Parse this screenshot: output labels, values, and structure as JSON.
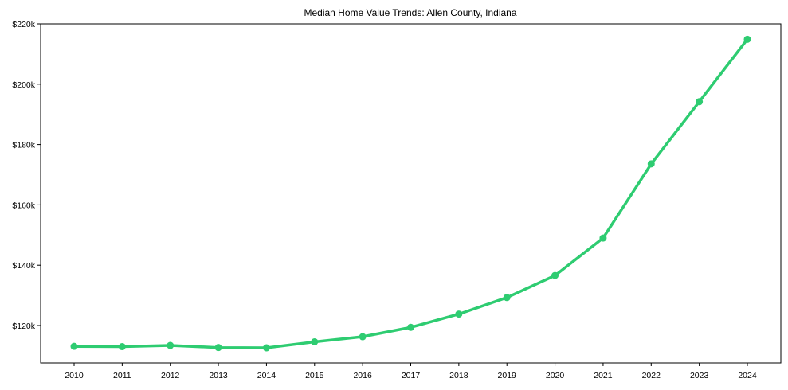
{
  "chart_data": {
    "type": "line",
    "title": "Median Home Value Trends: Allen County, Indiana",
    "xlabel": "",
    "ylabel": "",
    "x": [
      2010,
      2011,
      2012,
      2013,
      2014,
      2015,
      2016,
      2017,
      2018,
      2019,
      2020,
      2021,
      2022,
      2023,
      2024
    ],
    "series": [
      {
        "name": "Median Home Value",
        "color": "#2ecc71",
        "marker": "circle",
        "values": [
          113100,
          113000,
          113400,
          112700,
          112600,
          114600,
          116300,
          119400,
          123800,
          129300,
          136600,
          149000,
          173600,
          194200,
          214900
        ]
      }
    ],
    "ylim": [
      107600,
      220000
    ],
    "yticks": [
      120000,
      140000,
      160000,
      180000,
      200000,
      220000
    ],
    "ytick_labels": [
      "$120k",
      "$140k",
      "$160k",
      "$180k",
      "$200k",
      "$220k"
    ],
    "xtick_labels": [
      "2010",
      "2011",
      "2012",
      "2013",
      "2014",
      "2015",
      "2016",
      "2017",
      "2018",
      "2019",
      "2020",
      "2021",
      "2022",
      "2023",
      "2024"
    ],
    "grid": false,
    "legend": null
  }
}
